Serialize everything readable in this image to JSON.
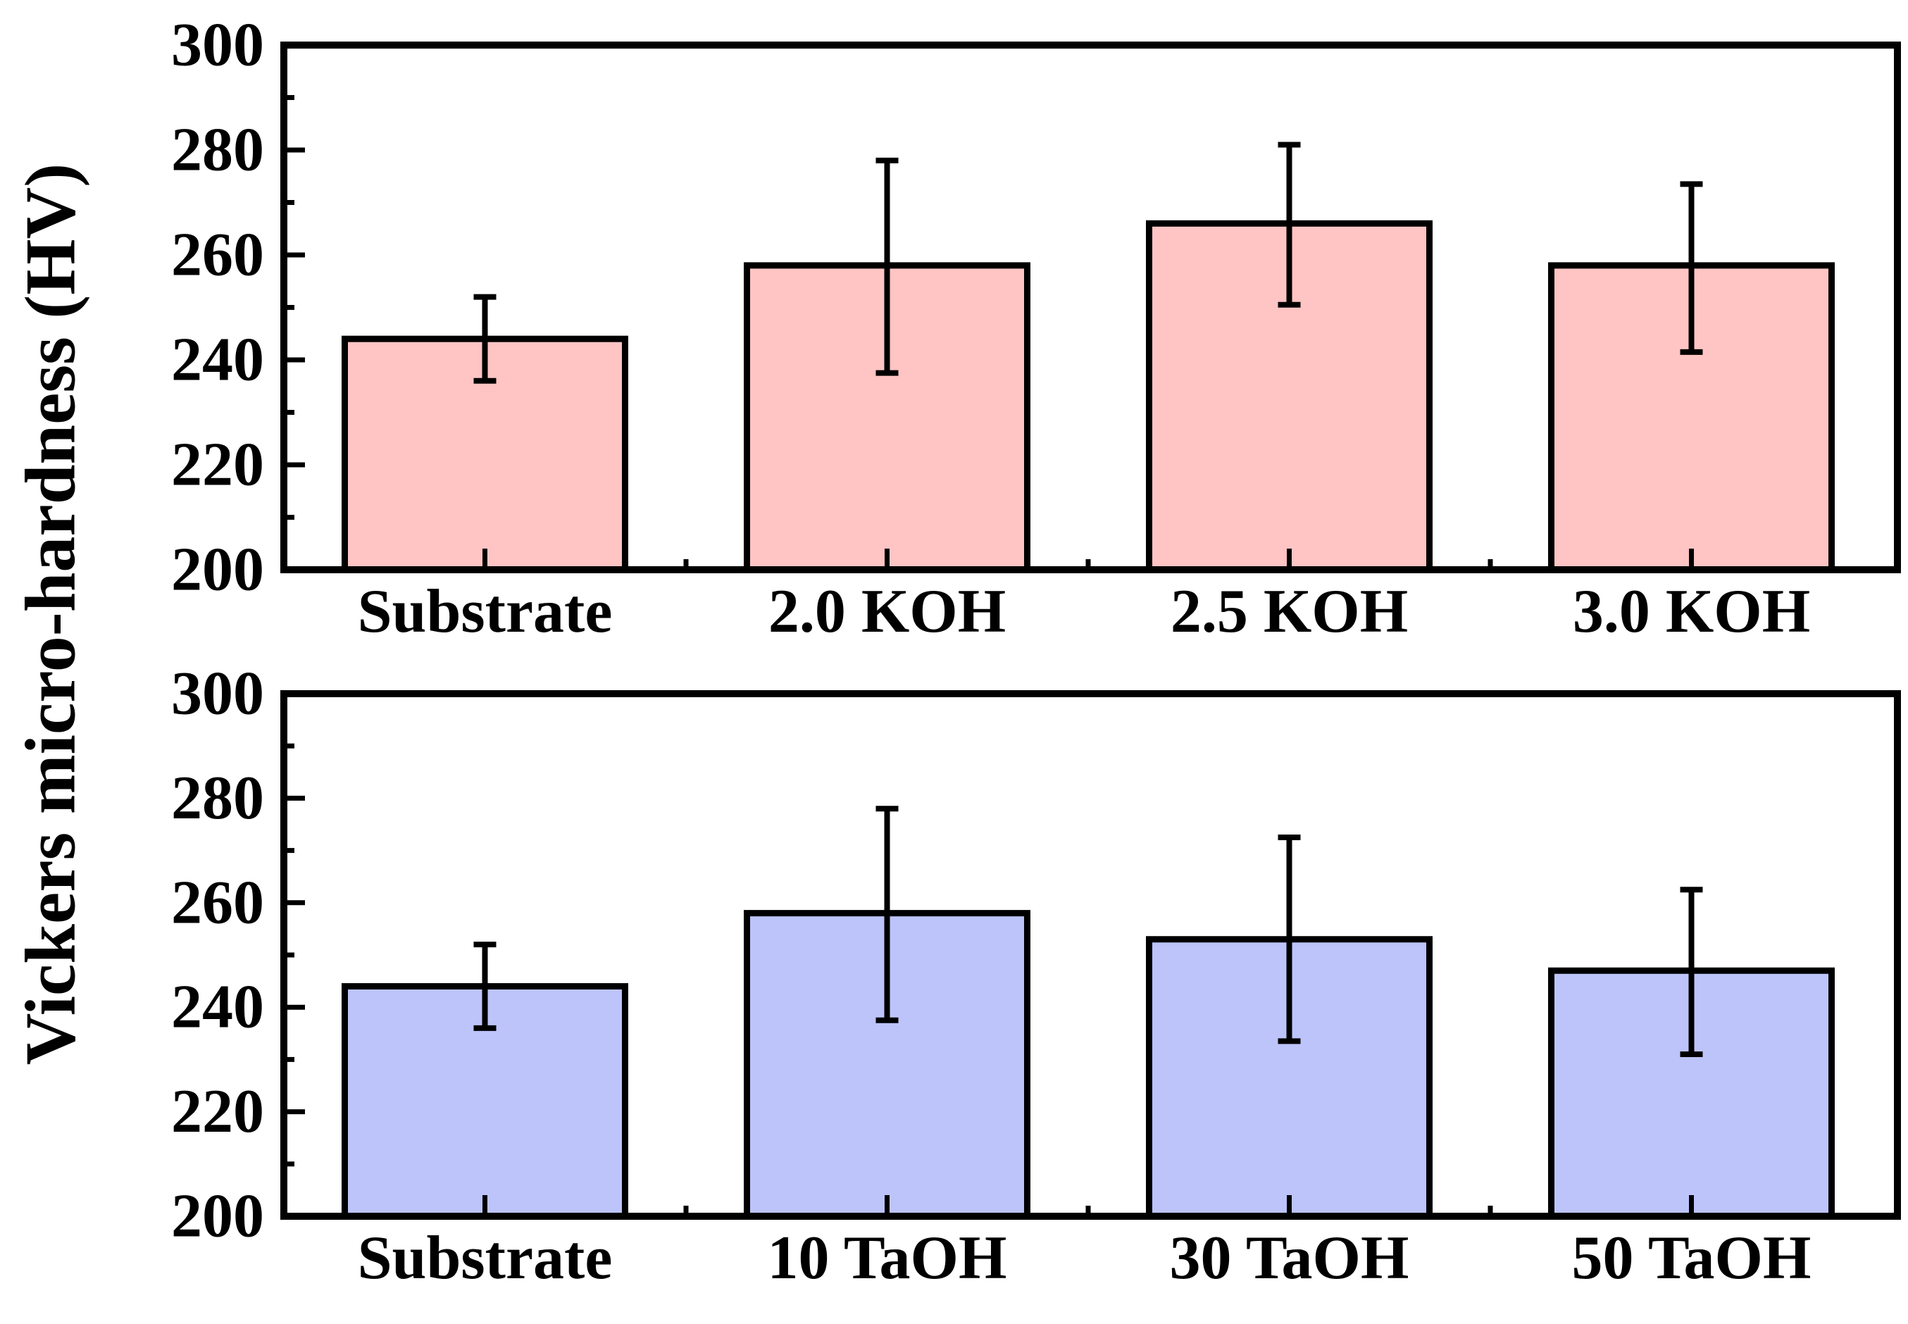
{
  "ylabel": "Vickers micro-hardness (HV)",
  "chart_data": [
    {
      "type": "bar",
      "panel": "top",
      "categories": [
        "Substrate",
        "2.0 KOH",
        "2.5 KOH",
        "3.0 KOH"
      ],
      "values": [
        244,
        258,
        266,
        258
      ],
      "errors": [
        {
          "low": 236,
          "high": 252
        },
        {
          "low": 237.5,
          "high": 278
        },
        {
          "low": 250.5,
          "high": 281
        },
        {
          "low": 241.5,
          "high": 273.5
        }
      ],
      "ylim": [
        200,
        300
      ],
      "yticks": [
        "200",
        "220",
        "240",
        "260",
        "280",
        "300"
      ],
      "fill_color": "#ffc4c4",
      "title": "",
      "xlabel": ""
    },
    {
      "type": "bar",
      "panel": "bottom",
      "categories": [
        "Substrate",
        "10 TaOH",
        "30 TaOH",
        "50 TaOH"
      ],
      "values": [
        244,
        258,
        253,
        247
      ],
      "errors": [
        {
          "low": 236,
          "high": 252
        },
        {
          "low": 237.5,
          "high": 278
        },
        {
          "low": 233.5,
          "high": 272.5
        },
        {
          "low": 231,
          "high": 262.5
        }
      ],
      "ylim": [
        200,
        300
      ],
      "yticks": [
        "200",
        "220",
        "240",
        "260",
        "280",
        "300"
      ],
      "fill_color": "#bcc4fa",
      "title": "",
      "xlabel": ""
    }
  ]
}
